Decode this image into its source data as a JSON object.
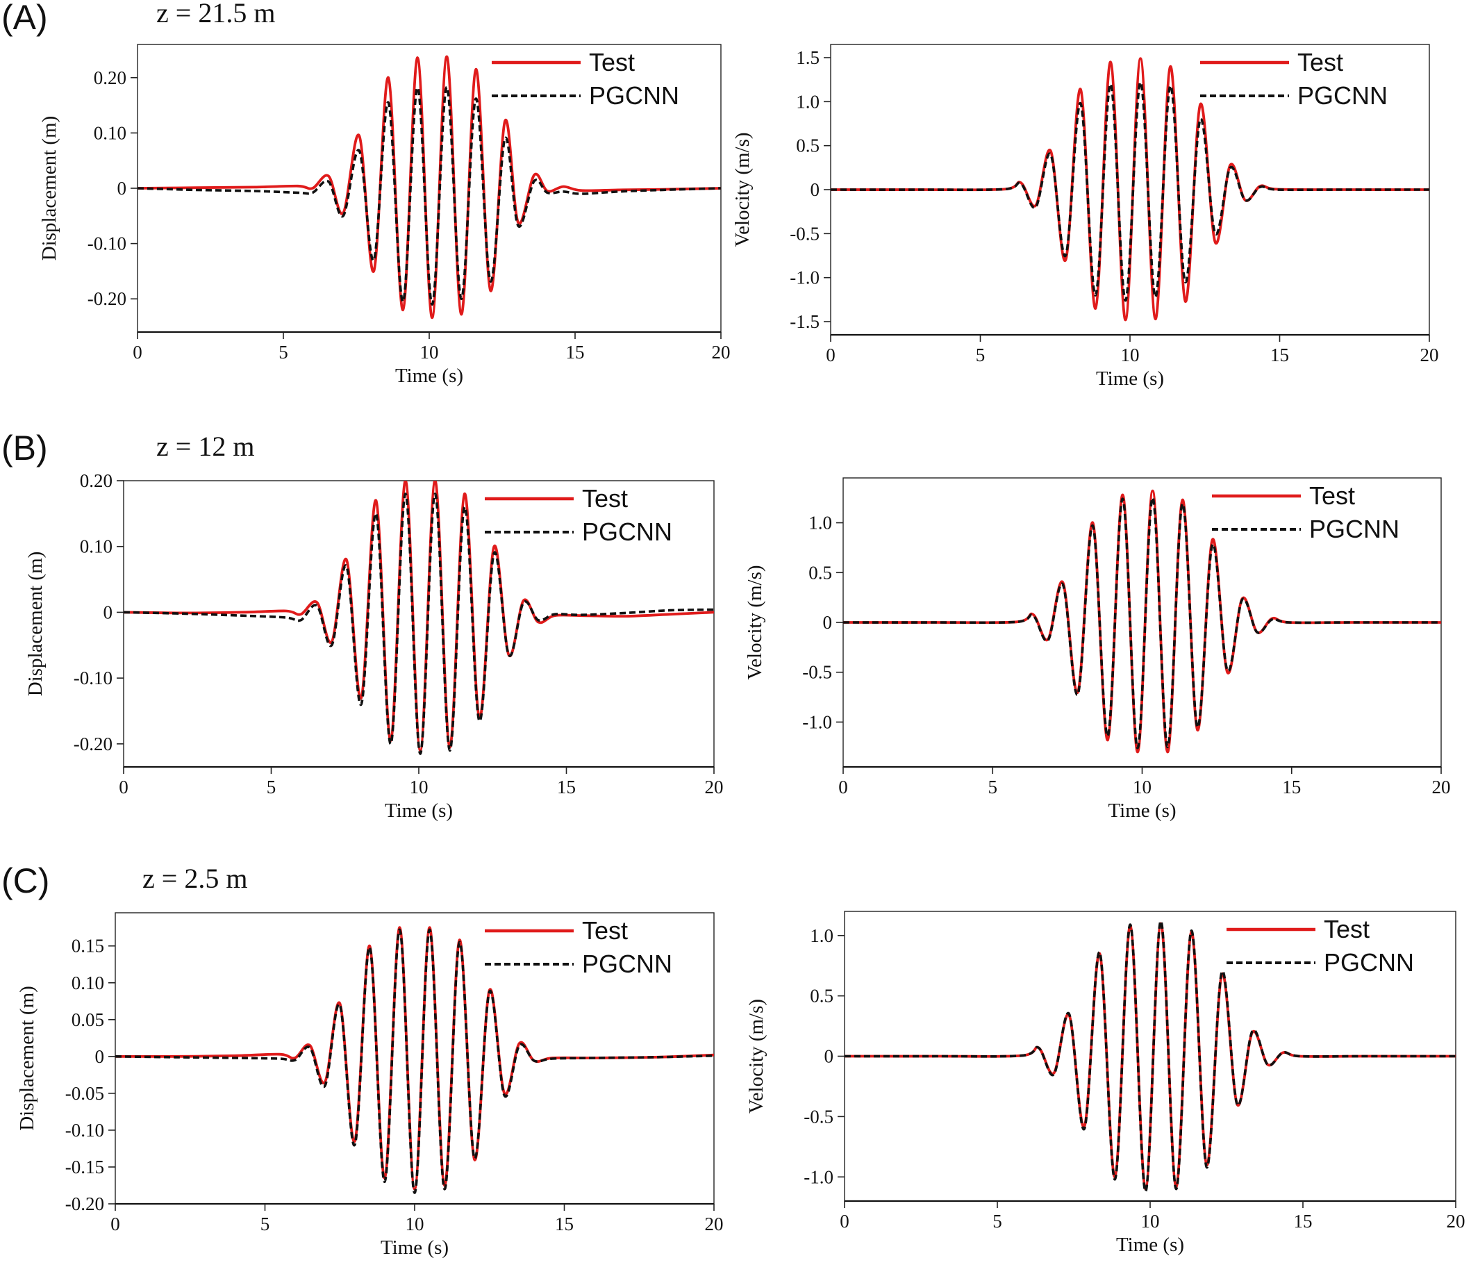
{
  "colors": {
    "test": "#e01b1b",
    "pgcnn": "#111111"
  },
  "panels": [
    {
      "letter": "(A)",
      "depth_label": "z = 21.5 m"
    },
    {
      "letter": "(B)",
      "depth_label": "z = 12 m"
    },
    {
      "letter": "(C)",
      "depth_label": "z = 2.5 m"
    }
  ],
  "chart_data": [
    {
      "type": "line",
      "row": "A",
      "quantity": "displacement",
      "xlabel": "Time (s)",
      "ylabel": "Displacement (m)",
      "xlim": [
        0,
        20
      ],
      "ylim": [
        -0.26,
        0.26
      ],
      "xticks": [
        0,
        5,
        10,
        15,
        20
      ],
      "xtick_labels": [
        "0",
        "5",
        "10",
        "15",
        "20"
      ],
      "yticks": [
        -0.2,
        -0.1,
        0,
        0.1,
        0.2
      ],
      "ytick_labels": [
        "-0.20",
        "-0.10",
        "0",
        "0.10",
        "0.20"
      ],
      "legend": "top-right",
      "grid": false,
      "series": [
        {
          "name": "Test",
          "style": "solid",
          "x": [
            0,
            2,
            4,
            5.5,
            6,
            6.55,
            7.05,
            7.6,
            8.1,
            8.6,
            9.1,
            9.6,
            10.1,
            10.6,
            11.1,
            11.6,
            12.1,
            12.6,
            13.05,
            13.6,
            14.05,
            14.6,
            15.2,
            16.5,
            18,
            20
          ],
          "y": [
            0,
            0.001,
            0.002,
            0.004,
            0.0,
            0.022,
            -0.045,
            0.095,
            -0.15,
            0.2,
            -0.22,
            0.236,
            -0.234,
            0.238,
            -0.228,
            0.215,
            -0.185,
            0.122,
            -0.062,
            0.024,
            -0.005,
            0.003,
            -0.004,
            -0.003,
            -0.002,
            0
          ]
        },
        {
          "name": "PGCNN",
          "style": "dashed",
          "x": [
            0,
            2,
            4,
            5.5,
            6,
            6.55,
            7.05,
            7.6,
            8.1,
            8.6,
            9.1,
            9.6,
            10.1,
            10.6,
            11.1,
            11.6,
            12.1,
            12.6,
            13.05,
            13.6,
            14.05,
            14.6,
            15.2,
            16.5,
            18,
            20
          ],
          "y": [
            0,
            -0.003,
            -0.005,
            -0.008,
            -0.008,
            0.012,
            -0.05,
            0.068,
            -0.13,
            0.155,
            -0.205,
            0.182,
            -0.21,
            0.183,
            -0.2,
            0.162,
            -0.168,
            0.09,
            -0.068,
            0.013,
            -0.008,
            -0.006,
            -0.01,
            -0.006,
            -0.003,
            0
          ]
        }
      ]
    },
    {
      "type": "line",
      "row": "A",
      "quantity": "velocity",
      "xlabel": "Time (s)",
      "ylabel": "Velocity (m/s)",
      "xlim": [
        0,
        20
      ],
      "ylim": [
        -1.65,
        1.65
      ],
      "xticks": [
        0,
        5,
        10,
        15,
        20
      ],
      "xtick_labels": [
        "0",
        "5",
        "10",
        "15",
        "20"
      ],
      "yticks": [
        -1.5,
        -1.0,
        -0.5,
        0,
        0.5,
        1.0,
        1.5
      ],
      "ytick_labels": [
        "-1.5",
        "-1.0",
        "-0.5",
        "0",
        "0.5",
        "1.0",
        "1.5"
      ],
      "legend": "top-right",
      "grid": false,
      "series": [
        {
          "name": "Test",
          "style": "solid",
          "x": [
            0,
            3,
            5.8,
            6.35,
            6.85,
            7.35,
            7.85,
            8.35,
            8.85,
            9.35,
            9.85,
            10.35,
            10.85,
            11.35,
            11.85,
            12.35,
            12.85,
            13.35,
            13.85,
            14.35,
            14.9,
            17,
            20
          ],
          "y": [
            0,
            0,
            0.005,
            0.08,
            -0.18,
            0.44,
            -0.8,
            1.14,
            -1.35,
            1.45,
            -1.48,
            1.49,
            -1.47,
            1.4,
            -1.27,
            0.97,
            -0.6,
            0.28,
            -0.12,
            0.04,
            0.005,
            0,
            0
          ]
        },
        {
          "name": "PGCNN",
          "style": "dashed",
          "x": [
            0,
            3,
            5.8,
            6.35,
            6.85,
            7.35,
            7.85,
            8.35,
            8.85,
            9.35,
            9.85,
            10.35,
            10.85,
            11.35,
            11.85,
            12.35,
            12.85,
            13.35,
            13.85,
            14.35,
            14.9,
            17,
            20
          ],
          "y": [
            0,
            0,
            0.005,
            0.07,
            -0.2,
            0.4,
            -0.75,
            0.98,
            -1.2,
            1.2,
            -1.26,
            1.22,
            -1.22,
            1.18,
            -1.05,
            0.8,
            -0.5,
            0.25,
            -0.12,
            0.03,
            0.0,
            0,
            0
          ]
        }
      ]
    },
    {
      "type": "line",
      "row": "B",
      "quantity": "displacement",
      "xlabel": "Time (s)",
      "ylabel": "Displacement (m)",
      "xlim": [
        0,
        20
      ],
      "ylim": [
        -0.235,
        0.2
      ],
      "xticks": [
        0,
        5,
        10,
        15,
        20
      ],
      "xtick_labels": [
        "0",
        "5",
        "10",
        "15",
        "20"
      ],
      "yticks": [
        -0.2,
        -0.1,
        0,
        0.1,
        0.2
      ],
      "ytick_labels": [
        "-0.20",
        "-0.10",
        "0",
        "0.10",
        "0.20"
      ],
      "legend": "top-right",
      "grid": false,
      "series": [
        {
          "name": "Test",
          "style": "solid",
          "x": [
            0,
            2,
            4,
            5.5,
            6,
            6.55,
            7.05,
            7.55,
            8.05,
            8.55,
            9.05,
            9.55,
            10.05,
            10.55,
            11.05,
            11.55,
            12.05,
            12.55,
            13.05,
            13.55,
            14.05,
            14.6,
            15.5,
            17,
            18.5,
            20
          ],
          "y": [
            0,
            -0.001,
            0.0,
            0.002,
            -0.003,
            0.015,
            -0.045,
            0.08,
            -0.13,
            0.17,
            -0.195,
            0.2,
            -0.21,
            0.2,
            -0.205,
            0.18,
            -0.16,
            0.1,
            -0.065,
            0.018,
            -0.015,
            -0.005,
            -0.005,
            -0.006,
            -0.003,
            0
          ]
        },
        {
          "name": "PGCNN",
          "style": "dashed",
          "x": [
            0,
            2,
            4,
            5.5,
            6,
            6.55,
            7.05,
            7.55,
            8.05,
            8.55,
            9.05,
            9.55,
            10.05,
            10.55,
            11.05,
            11.55,
            12.05,
            12.55,
            13.05,
            13.55,
            14.05,
            14.6,
            15.5,
            17,
            18.5,
            20
          ],
          "y": [
            0,
            -0.002,
            -0.005,
            -0.008,
            -0.012,
            0.01,
            -0.05,
            0.07,
            -0.14,
            0.15,
            -0.2,
            0.18,
            -0.215,
            0.18,
            -0.21,
            0.16,
            -0.165,
            0.09,
            -0.065,
            0.015,
            -0.012,
            -0.003,
            -0.004,
            -0.001,
            0.003,
            0.004
          ]
        }
      ]
    },
    {
      "type": "line",
      "row": "B",
      "quantity": "velocity",
      "xlabel": "Time (s)",
      "ylabel": "Velocity (m/s)",
      "xlim": [
        0,
        20
      ],
      "ylim": [
        -1.45,
        1.45
      ],
      "xticks": [
        0,
        5,
        10,
        15,
        20
      ],
      "xtick_labels": [
        "0",
        "5",
        "10",
        "15",
        "20"
      ],
      "yticks": [
        -1.0,
        -0.5,
        0,
        0.5,
        1.0
      ],
      "ytick_labels": [
        "-1.0",
        "-0.5",
        "0",
        "0.5",
        "1.0"
      ],
      "legend": "top-right",
      "grid": false,
      "series": [
        {
          "name": "Test",
          "style": "solid",
          "x": [
            0,
            3,
            5.8,
            6.35,
            6.85,
            7.35,
            7.85,
            8.35,
            8.85,
            9.35,
            9.85,
            10.35,
            10.85,
            11.35,
            11.85,
            12.35,
            12.85,
            13.35,
            13.85,
            14.35,
            14.9,
            17,
            20
          ],
          "y": [
            0,
            0,
            0.005,
            0.08,
            -0.17,
            0.4,
            -0.7,
            1.0,
            -1.18,
            1.28,
            -1.3,
            1.32,
            -1.3,
            1.23,
            -1.08,
            0.83,
            -0.5,
            0.24,
            -0.1,
            0.04,
            0.0,
            0,
            0
          ]
        },
        {
          "name": "PGCNN",
          "style": "dashed",
          "x": [
            0,
            3,
            5.8,
            6.35,
            6.85,
            7.35,
            7.85,
            8.35,
            8.85,
            9.35,
            9.85,
            10.35,
            10.85,
            11.35,
            11.85,
            12.35,
            12.85,
            13.35,
            13.85,
            14.35,
            14.9,
            17,
            20
          ],
          "y": [
            0,
            0,
            0.005,
            0.07,
            -0.18,
            0.38,
            -0.72,
            0.97,
            -1.14,
            1.24,
            -1.26,
            1.25,
            -1.25,
            1.19,
            -1.05,
            0.78,
            -0.48,
            0.23,
            -0.1,
            0.03,
            0.0,
            0,
            0
          ]
        }
      ]
    },
    {
      "type": "line",
      "row": "C",
      "quantity": "displacement",
      "xlabel": "Time (s)",
      "ylabel": "Displacement (m)",
      "xlim": [
        0,
        20
      ],
      "ylim": [
        -0.2,
        0.195
      ],
      "xticks": [
        0,
        5,
        10,
        15,
        20
      ],
      "xtick_labels": [
        "0",
        "5",
        "10",
        "15",
        "20"
      ],
      "yticks": [
        -0.2,
        -0.15,
        -0.1,
        -0.05,
        0,
        0.05,
        0.1,
        0.15
      ],
      "ytick_labels": [
        "-0.20",
        "-0.15",
        "-0.10",
        "-0.05",
        "0",
        "0.05",
        "0.10",
        "0.15"
      ],
      "legend": "top-right",
      "grid": false,
      "series": [
        {
          "name": "Test",
          "style": "solid",
          "x": [
            0,
            2,
            4,
            5.5,
            6,
            6.5,
            7.0,
            7.5,
            8.0,
            8.5,
            9.0,
            9.5,
            10.0,
            10.5,
            11.0,
            11.5,
            12.0,
            12.5,
            13.0,
            13.5,
            14.0,
            14.6,
            16,
            18,
            20
          ],
          "y": [
            0,
            0.0,
            0.001,
            0.003,
            -0.002,
            0.015,
            -0.035,
            0.072,
            -0.115,
            0.15,
            -0.165,
            0.175,
            -0.18,
            0.175,
            -0.175,
            0.158,
            -0.14,
            0.09,
            -0.05,
            0.018,
            -0.006,
            -0.002,
            -0.002,
            -0.001,
            0.002
          ]
        },
        {
          "name": "PGCNN",
          "style": "dashed",
          "x": [
            0,
            2,
            4,
            5.5,
            6,
            6.5,
            7.0,
            7.5,
            8.0,
            8.5,
            9.0,
            9.5,
            10.0,
            10.5,
            11.0,
            11.5,
            12.0,
            12.5,
            13.0,
            13.5,
            14.0,
            14.6,
            16,
            18,
            20
          ],
          "y": [
            0,
            -0.001,
            -0.002,
            -0.003,
            -0.005,
            0.012,
            -0.04,
            0.07,
            -0.12,
            0.148,
            -0.17,
            0.172,
            -0.185,
            0.172,
            -0.18,
            0.155,
            -0.138,
            0.088,
            -0.053,
            0.015,
            -0.006,
            -0.003,
            -0.002,
            -0.001,
            0.001
          ]
        }
      ]
    },
    {
      "type": "line",
      "row": "C",
      "quantity": "velocity",
      "xlabel": "Time (s)",
      "ylabel": "Velocity (m/s)",
      "xlim": [
        0,
        20
      ],
      "ylim": [
        -1.2,
        1.2
      ],
      "xticks": [
        0,
        5,
        10,
        15,
        20
      ],
      "xtick_labels": [
        "0",
        "5",
        "10",
        "15",
        "20"
      ],
      "yticks": [
        -1.0,
        -0.5,
        0,
        0.5,
        1.0
      ],
      "ytick_labels": [
        "-1.0",
        "-0.5",
        "0",
        "0.5",
        "1.0"
      ],
      "legend": "top-right",
      "grid": false,
      "series": [
        {
          "name": "Test",
          "style": "solid",
          "x": [
            0,
            3,
            5.8,
            6.35,
            6.85,
            7.35,
            7.85,
            8.35,
            8.85,
            9.35,
            9.85,
            10.35,
            10.85,
            11.35,
            11.85,
            12.35,
            12.85,
            13.35,
            13.85,
            14.35,
            14.9,
            17,
            20
          ],
          "y": [
            0,
            0,
            0.005,
            0.07,
            -0.14,
            0.34,
            -0.58,
            0.85,
            -1.0,
            1.08,
            -1.1,
            1.1,
            -1.08,
            1.03,
            -0.9,
            0.68,
            -0.4,
            0.2,
            -0.07,
            0.03,
            0.0,
            0,
            0
          ]
        },
        {
          "name": "PGCNN",
          "style": "dashed",
          "x": [
            0,
            3,
            5.8,
            6.35,
            6.85,
            7.35,
            7.85,
            8.35,
            8.85,
            9.35,
            9.85,
            10.35,
            10.85,
            11.35,
            11.85,
            12.35,
            12.85,
            13.35,
            13.85,
            14.35,
            14.9,
            17,
            20
          ],
          "y": [
            0,
            0,
            0.005,
            0.07,
            -0.15,
            0.35,
            -0.6,
            0.86,
            -1.02,
            1.09,
            -1.12,
            1.12,
            -1.1,
            1.04,
            -0.92,
            0.7,
            -0.4,
            0.21,
            -0.07,
            0.03,
            0.0,
            0,
            0
          ]
        }
      ]
    }
  ]
}
